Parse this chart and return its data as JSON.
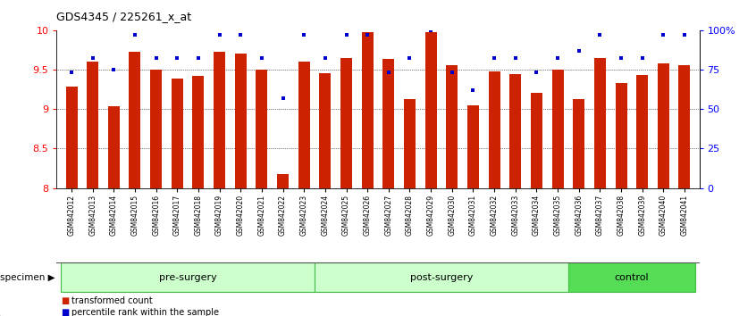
{
  "title": "GDS4345 / 225261_x_at",
  "samples": [
    "GSM842012",
    "GSM842013",
    "GSM842014",
    "GSM842015",
    "GSM842016",
    "GSM842017",
    "GSM842018",
    "GSM842019",
    "GSM842020",
    "GSM842021",
    "GSM842022",
    "GSM842023",
    "GSM842024",
    "GSM842025",
    "GSM842026",
    "GSM842027",
    "GSM842028",
    "GSM842029",
    "GSM842030",
    "GSM842031",
    "GSM842032",
    "GSM842033",
    "GSM842034",
    "GSM842035",
    "GSM842036",
    "GSM842037",
    "GSM842038",
    "GSM842039",
    "GSM842040",
    "GSM842041"
  ],
  "transformed_count": [
    9.28,
    9.6,
    9.03,
    9.72,
    9.5,
    9.38,
    9.42,
    9.72,
    9.7,
    9.5,
    8.18,
    9.6,
    9.45,
    9.65,
    9.97,
    9.63,
    9.13,
    9.97,
    9.55,
    9.05,
    9.48,
    9.44,
    9.2,
    9.5,
    9.13,
    9.65,
    9.33,
    9.43,
    9.58,
    9.55
  ],
  "percentile_rank": [
    73,
    82,
    75,
    97,
    82,
    82,
    82,
    97,
    97,
    82,
    57,
    97,
    82,
    97,
    97,
    73,
    82,
    100,
    73,
    62,
    82,
    82,
    73,
    82,
    87,
    97,
    82,
    82,
    97,
    97
  ],
  "groups": [
    {
      "label": "pre-surgery",
      "start": 0,
      "end": 11,
      "color": "#ccffcc",
      "edge": "#44bb44"
    },
    {
      "label": "post-surgery",
      "start": 12,
      "end": 23,
      "color": "#ccffcc",
      "edge": "#44bb44"
    },
    {
      "label": "control",
      "start": 24,
      "end": 29,
      "color": "#55dd55",
      "edge": "#44bb44"
    }
  ],
  "ylim": [
    8.0,
    10.0
  ],
  "yticks_left": [
    8.0,
    8.5,
    9.0,
    9.5,
    10.0
  ],
  "yticks_right": [
    0,
    25,
    50,
    75,
    100
  ],
  "bar_color": "#cc2200",
  "square_color": "#0000cc",
  "bg_color": "#ffffff",
  "legend_bar_label": "transformed count",
  "legend_sq_label": "percentile rank within the sample",
  "specimen_label": "specimen"
}
